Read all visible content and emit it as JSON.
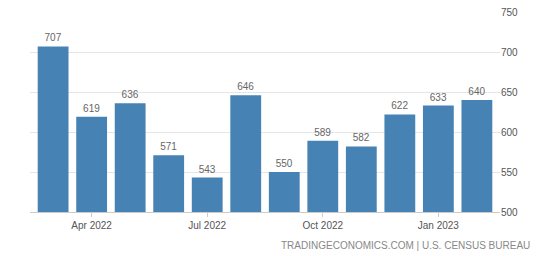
{
  "chart_data": {
    "type": "bar",
    "categories": [
      null,
      "Apr 2022",
      null,
      null,
      "Jul 2022",
      null,
      null,
      "Oct 2022",
      null,
      null,
      "Jan 2023",
      null
    ],
    "values": [
      707,
      619,
      636,
      571,
      543,
      646,
      550,
      589,
      582,
      622,
      633,
      640
    ],
    "color": "#4682b4",
    "ylim": [
      500,
      750
    ],
    "yticks": [
      500,
      550,
      600,
      650,
      700,
      750
    ],
    "grid": true,
    "data_labels": true,
    "annotations": [
      "TRADINGECONOMICS.COM | U.S. CENSUS BUREAU"
    ]
  }
}
